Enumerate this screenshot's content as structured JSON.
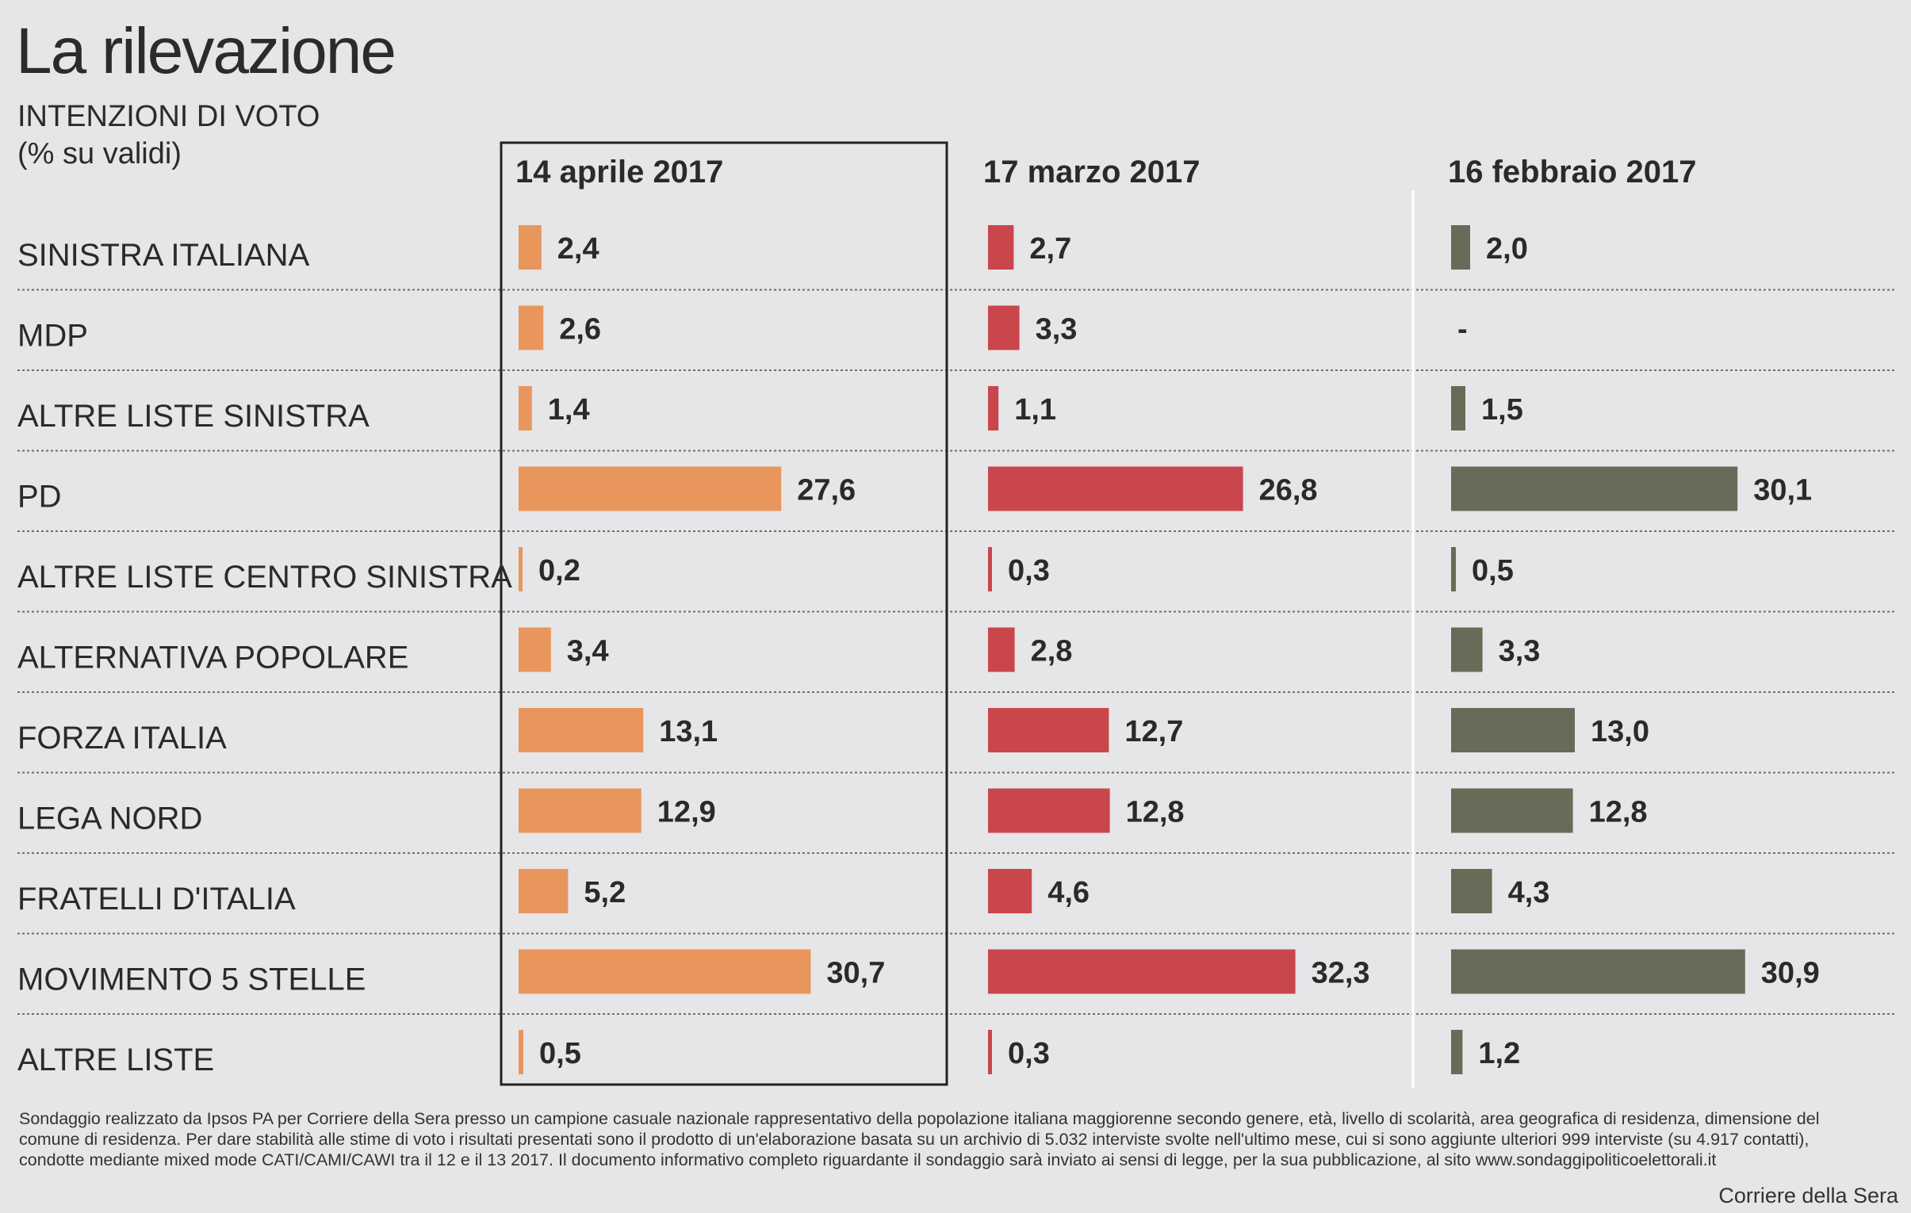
{
  "header": {
    "title": "La rilevazione",
    "subtitle_line1": "INTENZIONI DI VOTO",
    "subtitle_line2": "(% su validi)"
  },
  "chart_data": {
    "type": "bar",
    "orientation": "horizontal",
    "categories": [
      "SINISTRA ITALIANA",
      "MDP",
      "ALTRE LISTE SINISTRA",
      "PD",
      "ALTRE LISTE CENTRO SINISTRA",
      "ALTERNATIVA POPOLARE",
      "FORZA ITALIA",
      "LEGA NORD",
      "FRATELLI D'ITALIA",
      "MOVIMENTO 5 STELLE",
      "ALTRE LISTE"
    ],
    "series": [
      {
        "name": "14 aprile 2017",
        "color": "#e9965c",
        "highlighted": true,
        "values": [
          2.4,
          2.6,
          1.4,
          27.6,
          0.2,
          3.4,
          13.1,
          12.9,
          5.2,
          30.7,
          0.5
        ],
        "labels": [
          "2,4",
          "2,6",
          "1,4",
          "27,6",
          "0,2",
          "3,4",
          "13,1",
          "12,9",
          "5,2",
          "30,7",
          "0,5"
        ]
      },
      {
        "name": "17 marzo 2017",
        "color": "#c9464d",
        "highlighted": false,
        "values": [
          2.7,
          3.3,
          1.1,
          26.8,
          0.3,
          2.8,
          12.7,
          12.8,
          4.6,
          32.3,
          0.3
        ],
        "labels": [
          "2,7",
          "3,3",
          "1,1",
          "26,8",
          "0,3",
          "2,8",
          "12,7",
          "12,8",
          "4,6",
          "32,3",
          "0,3"
        ]
      },
      {
        "name": "16 febbraio 2017",
        "color": "#676c58",
        "highlighted": false,
        "values": [
          2.0,
          null,
          1.5,
          30.1,
          0.5,
          3.3,
          13.0,
          12.8,
          4.3,
          30.9,
          1.2
        ],
        "labels": [
          "2,0",
          "-",
          "1,5",
          "30,1",
          "0,5",
          "3,3",
          "13,0",
          "12,8",
          "4,3",
          "30,9",
          "1,2"
        ]
      }
    ],
    "grid": "dotted row separators",
    "legend": "column headers"
  },
  "footer": {
    "note": "Sondaggio realizzato da Ipsos PA per Corriere della Sera presso un campione casuale nazionale rappresentativo della popolazione italiana maggiorenne secondo genere, età, livello di scolarità, area geografica di residenza, dimensione del comune di residenza. Per dare stabilità alle stime di voto i risultati presentati sono il prodotto di un'elaborazione basata su un archivio di 5.032 interviste svolte nell'ultimo mese, cui si sono aggiunte ulteriori 999 interviste (su 4.917 contatti), condotte mediante mixed mode CATI/CAMI/CAWI tra il 12 e il 13 2017. Il documento informativo completo riguardante il sondaggio sarà inviato ai sensi di legge, per la sua pubblicazione, al sito www.sondaggipoliticoelettorali.it",
    "credit": "Corriere della Sera"
  }
}
